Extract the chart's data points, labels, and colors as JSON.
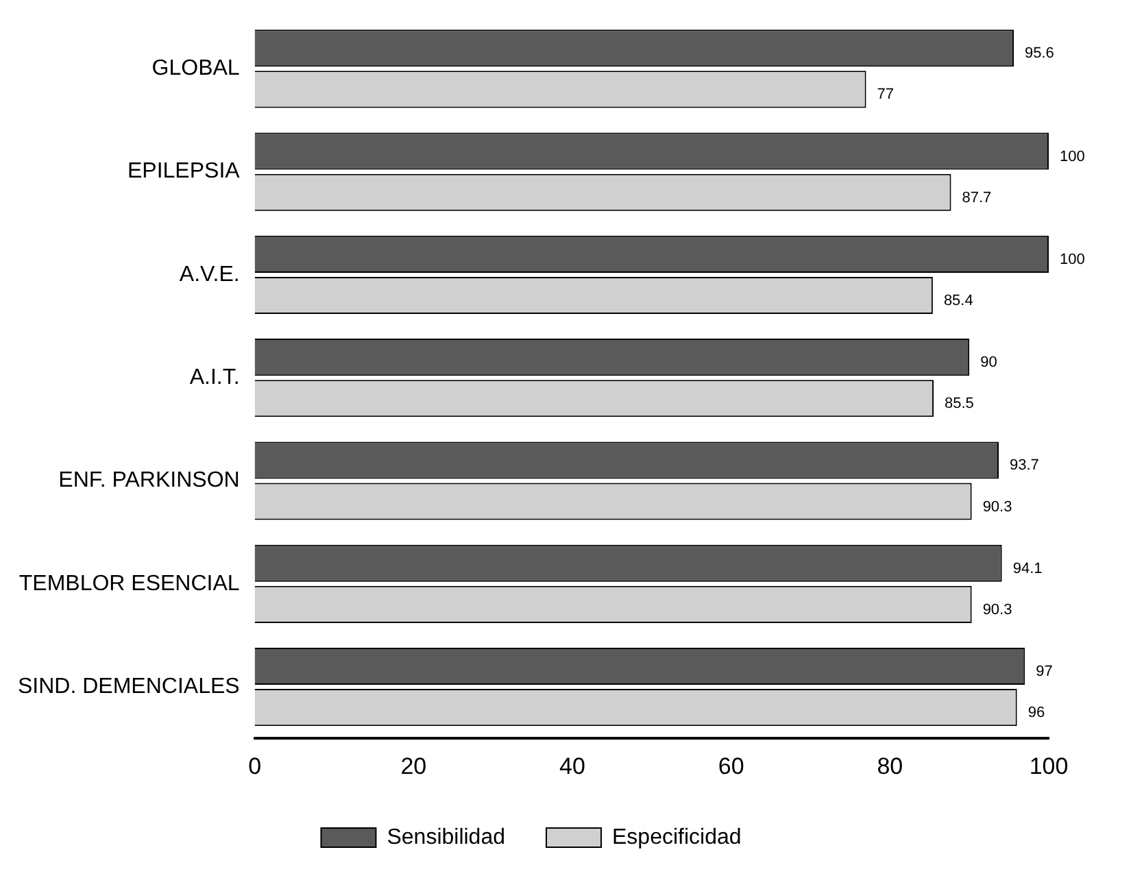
{
  "chart_data": {
    "type": "bar",
    "orientation": "horizontal",
    "categories": [
      "GLOBAL",
      "EPILEPSIA",
      "A.V.E.",
      "A.I.T.",
      "ENF. PARKINSON",
      "TEMBLOR ESENCIAL",
      "SIND. DEMENCIALES"
    ],
    "series": [
      {
        "name": "Sensibilidad",
        "color": "#5a5a5a",
        "values": [
          95.6,
          100,
          100,
          90,
          93.7,
          94.1,
          97
        ]
      },
      {
        "name": "Especificidad",
        "color": "#d0d0d0",
        "values": [
          77,
          87.7,
          85.4,
          85.5,
          90.3,
          90.3,
          96
        ]
      }
    ],
    "xlim": [
      0,
      100
    ],
    "xticks": [
      0,
      20,
      40,
      60,
      80,
      100
    ],
    "grid": false,
    "legend": "bottom",
    "data_labels": true
  }
}
